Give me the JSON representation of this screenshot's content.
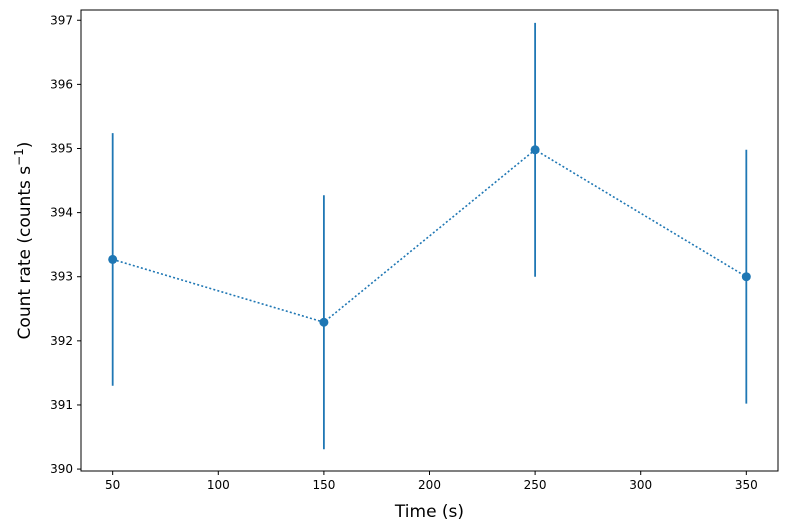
{
  "chart_data": {
    "type": "scatter",
    "title": "",
    "xlabel": "Time (s)",
    "ylabel": {
      "main": "Count rate (counts s",
      "sup_sign": "−",
      "sup_num": "1",
      "close": ")"
    },
    "xlim": [
      35,
      365
    ],
    "ylim": [
      389.97,
      397.16
    ],
    "xticks": [
      50,
      100,
      150,
      200,
      250,
      300,
      350
    ],
    "yticks": [
      390,
      391,
      392,
      393,
      394,
      395,
      396,
      397
    ],
    "grid": false,
    "line_style": "dotted",
    "color": "#1f77b4",
    "points": [
      {
        "x": 50,
        "y": 393.27,
        "yerr": 1.97
      },
      {
        "x": 150,
        "y": 392.29,
        "yerr": 1.98
      },
      {
        "x": 250,
        "y": 394.98,
        "yerr": 1.98
      },
      {
        "x": 350,
        "y": 393.0,
        "yerr": 1.98
      }
    ]
  }
}
